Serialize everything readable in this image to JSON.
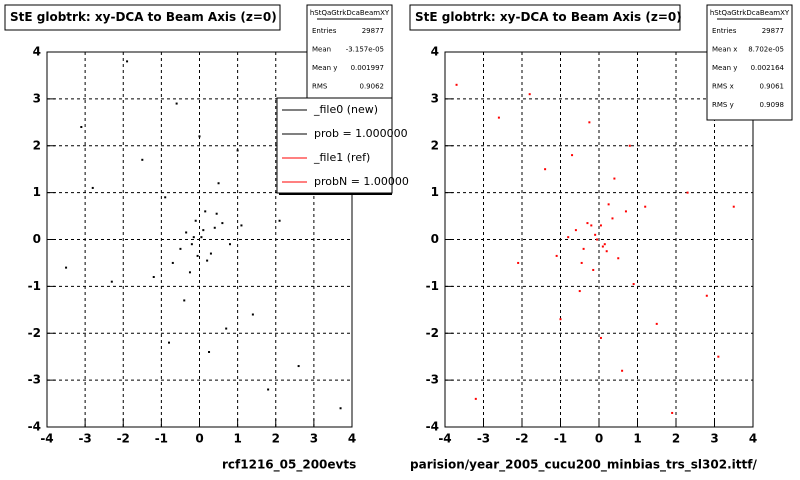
{
  "chart_data": [
    {
      "type": "scatter",
      "title": "StE globtrk: xy-DCA to Beam Axis (z=0)",
      "color": "#000000",
      "x": [
        0.1,
        -0.2,
        0.3,
        -0.1,
        0.05,
        -0.35,
        0.4,
        0.2,
        -0.5,
        0.6,
        -0.7,
        0.15,
        -0.25,
        0.8,
        -0.9,
        1.1,
        -1.2,
        0.5,
        -0.4,
        1.4,
        -1.5,
        2.1,
        -2.3,
        0.0,
        0.25,
        -0.6,
        1.8,
        -2.8,
        3.2,
        -3.5,
        2.6,
        -1.9,
        0.7,
        -0.05,
        0.45,
        -0.15,
        3.7,
        -3.1,
        1.0,
        -0.8
      ],
      "y": [
        0.2,
        -0.1,
        -0.3,
        0.4,
        0.05,
        0.15,
        0.25,
        -0.45,
        -0.2,
        0.35,
        -0.5,
        0.6,
        -0.7,
        -0.1,
        0.9,
        0.3,
        -0.8,
        1.2,
        -1.3,
        -1.6,
        1.7,
        0.4,
        -0.9,
        2.2,
        -2.4,
        2.9,
        -3.2,
        1.1,
        3.5,
        -0.6,
        -2.7,
        3.8,
        -1.9,
        -0.35,
        0.55,
        0.05,
        -3.6,
        2.4,
        1.9,
        -2.2
      ],
      "xlim": [
        -4,
        4
      ],
      "ylim": [
        -4,
        4
      ],
      "xticks": [
        -4,
        -3,
        -2,
        -1,
        0,
        1,
        2,
        3,
        4
      ],
      "yticks": [
        -4,
        -3,
        -2,
        -1,
        0,
        1,
        2,
        3,
        4
      ],
      "grid": true,
      "stats": {
        "name": "hStQaGtrkDcaBeamXY",
        "rows": [
          [
            "Entries",
            "29877"
          ],
          [
            "Mean",
            "-3.157e-05"
          ],
          [
            "Mean y",
            "0.001997"
          ],
          [
            "RMS",
            "0.9062"
          ]
        ]
      },
      "legend": [
        {
          "label": "_file0 (new)",
          "color": "#000000"
        },
        {
          "label": "prob = 1.000000",
          "color": "#000000"
        },
        {
          "label": "_file1 (ref)",
          "color": "#ff0000"
        },
        {
          "label": "probN = 1.00000",
          "color": "#ff0000"
        }
      ],
      "footer": "rcf1216_05_200evts"
    },
    {
      "type": "scatter",
      "title": "StE globtrk: xy-DCA to Beam Axis (z=0)",
      "color": "#ff0000",
      "x": [
        -0.1,
        0.2,
        -0.3,
        0.1,
        -0.05,
        0.35,
        -0.4,
        -0.2,
        0.5,
        -0.6,
        0.7,
        -0.15,
        0.25,
        -0.8,
        0.9,
        -1.1,
        1.2,
        -0.5,
        0.4,
        -1.4,
        1.5,
        -2.1,
        2.3,
        0.05,
        -0.25,
        0.6,
        -1.8,
        2.8,
        -3.2,
        3.5,
        -2.6,
        1.9,
        -0.7,
        0.05,
        -0.45,
        0.15,
        -3.7,
        3.1,
        -1.0,
        0.8
      ],
      "y": [
        0.1,
        -0.25,
        0.35,
        -0.15,
        0.0,
        0.45,
        -0.2,
        0.3,
        -0.4,
        0.2,
        0.6,
        -0.65,
        0.75,
        0.05,
        -0.95,
        -0.35,
        0.7,
        -1.1,
        1.3,
        1.5,
        -1.8,
        -0.5,
        1.0,
        -2.1,
        2.5,
        -2.8,
        3.1,
        -1.2,
        -3.4,
        0.7,
        2.6,
        -3.7,
        1.8,
        0.3,
        -0.5,
        -0.1,
        3.3,
        -2.5,
        -1.7,
        2.0
      ],
      "xlim": [
        -4,
        4
      ],
      "ylim": [
        -4,
        4
      ],
      "xticks": [
        -4,
        -3,
        -2,
        -1,
        0,
        1,
        2,
        3,
        4
      ],
      "yticks": [
        -4,
        -3,
        -2,
        -1,
        0,
        1,
        2,
        3,
        4
      ],
      "grid": true,
      "stats": {
        "name": "hStQaGtrkDcaBeamXY",
        "rows": [
          [
            "Entries",
            "29877"
          ],
          [
            "Mean x",
            "8.702e-05"
          ],
          [
            "Mean y",
            "0.002164"
          ],
          [
            "RMS x",
            "0.9061"
          ],
          [
            "RMS y",
            "0.9098"
          ]
        ]
      },
      "footer": "parision/year_2005_cucu200_minbias_trs_sl302.ittf/"
    }
  ]
}
